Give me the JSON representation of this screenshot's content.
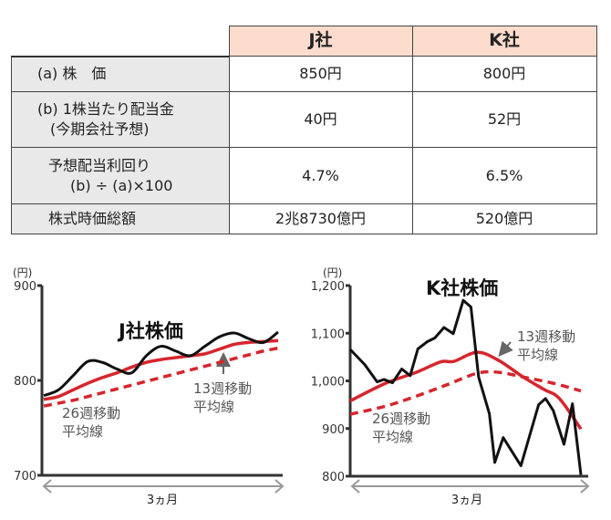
{
  "table": {
    "columns": [
      "J社",
      "K社"
    ],
    "rows": [
      {
        "label": [
          "(a) 株　価"
        ],
        "values": [
          "850円",
          "800円"
        ]
      },
      {
        "label": [
          "(b) 1株当たり配当金",
          "(今期会社予想)"
        ],
        "values": [
          "40円",
          "52円"
        ]
      },
      {
        "label": [
          "予想配当利回り",
          "(b) ÷ (a)×100"
        ],
        "values": [
          "4.7%",
          "6.5%"
        ]
      },
      {
        "label": [
          "株式時価総額"
        ],
        "values": [
          "2兆8730億円",
          "520億円"
        ]
      }
    ]
  },
  "colors": {
    "price": "#111111",
    "ma13": "#d6262e",
    "ma26": "#d6262e",
    "header_bg": "#fbdccd",
    "label_bg": "#e9e9e9"
  },
  "chart_data": [
    {
      "type": "line",
      "title": "J社株価",
      "ylabel": "(円)",
      "xlabel": "3ヵ月",
      "ylim": [
        700,
        900
      ],
      "yticks": [
        "900",
        "800",
        "700"
      ],
      "xlim_months": [
        0,
        3
      ],
      "series": [
        {
          "name": "J社株価",
          "style": "solid-black",
          "x": [
            0,
            0.1875,
            0.375,
            0.5625,
            0.75,
            0.9375,
            1.125,
            1.3125,
            1.5,
            1.6875,
            1.875,
            2.0625,
            2.25,
            2.4375,
            2.625,
            2.8125,
            3
          ],
          "y": [
            784,
            790,
            805,
            820,
            819,
            812,
            808,
            826,
            836,
            831,
            826,
            836,
            846,
            850,
            844,
            840,
            851
          ]
        },
        {
          "name": "13週移動平均線",
          "style": "solid-red",
          "x": [
            0,
            0.1875,
            0.375,
            0.5625,
            0.75,
            0.9375,
            1.125,
            1.3125,
            1.5,
            1.6875,
            1.875,
            2.0625,
            2.25,
            2.4375,
            2.625,
            2.8125,
            3
          ],
          "y": [
            780,
            783,
            790,
            797,
            803,
            808,
            814,
            819,
            822,
            824,
            826,
            828,
            833,
            838,
            840,
            841,
            842
          ]
        },
        {
          "name": "26週移動平均線",
          "style": "dashed-red",
          "x": [
            0,
            0.1875,
            0.375,
            0.5625,
            0.75,
            0.9375,
            1.125,
            1.3125,
            1.5,
            1.6875,
            1.875,
            2.0625,
            2.25,
            2.4375,
            2.625,
            2.8125,
            3
          ],
          "y": [
            773,
            776,
            779,
            783,
            787,
            791,
            795,
            799,
            803,
            807,
            811,
            815,
            819,
            823,
            827,
            831,
            834
          ]
        }
      ],
      "annotations": {
        "ma13": [
          "13週移動",
          "平均線"
        ],
        "ma26": [
          "26週移動",
          "平均線"
        ]
      }
    },
    {
      "type": "line",
      "title": "K社株価",
      "ylabel": "(円)",
      "xlabel": "3ヵ月",
      "ylim": [
        800,
        1200
      ],
      "yticks": [
        "1,200",
        "1,100",
        "1,000",
        "900",
        "800"
      ],
      "xlim_months": [
        0,
        3
      ],
      "series": [
        {
          "name": "K社株価",
          "style": "solid-black",
          "x": [
            0,
            0.19,
            0.35,
            0.44,
            0.55,
            0.67,
            0.78,
            0.88,
            1.0,
            1.1,
            1.22,
            1.34,
            1.47,
            1.57,
            1.67,
            1.81,
            1.88,
            1.99,
            2.22,
            2.45,
            2.54,
            2.64,
            2.78,
            2.89,
            3.0
          ],
          "y": [
            1066,
            1034,
            998,
            1003,
            996,
            1025,
            1011,
            1067,
            1082,
            1090,
            1112,
            1099,
            1169,
            1155,
            1008,
            931,
            829,
            881,
            822,
            950,
            963,
            938,
            867,
            952,
            803
          ]
        },
        {
          "name": "13週移動平均線",
          "style": "solid-red",
          "x": [
            0,
            0.46,
            0.86,
            1.18,
            1.35,
            1.65,
            1.93,
            2.25,
            2.52,
            2.72,
            3.0
          ],
          "y": [
            958,
            995,
            1018,
            1040,
            1041,
            1060,
            1043,
            1008,
            982,
            963,
            899
          ]
        },
        {
          "name": "26週移動平均線",
          "style": "dashed-red",
          "x": [
            0,
            0.46,
            0.86,
            1.26,
            1.65,
            1.93,
            2.25,
            2.64,
            3.0
          ],
          "y": [
            930,
            947,
            968,
            992,
            1016,
            1018,
            1008,
            995,
            979
          ]
        }
      ],
      "annotations": {
        "ma13": [
          "13週移動",
          "平均線"
        ],
        "ma26": [
          "26週移動",
          "平均線"
        ]
      }
    }
  ]
}
